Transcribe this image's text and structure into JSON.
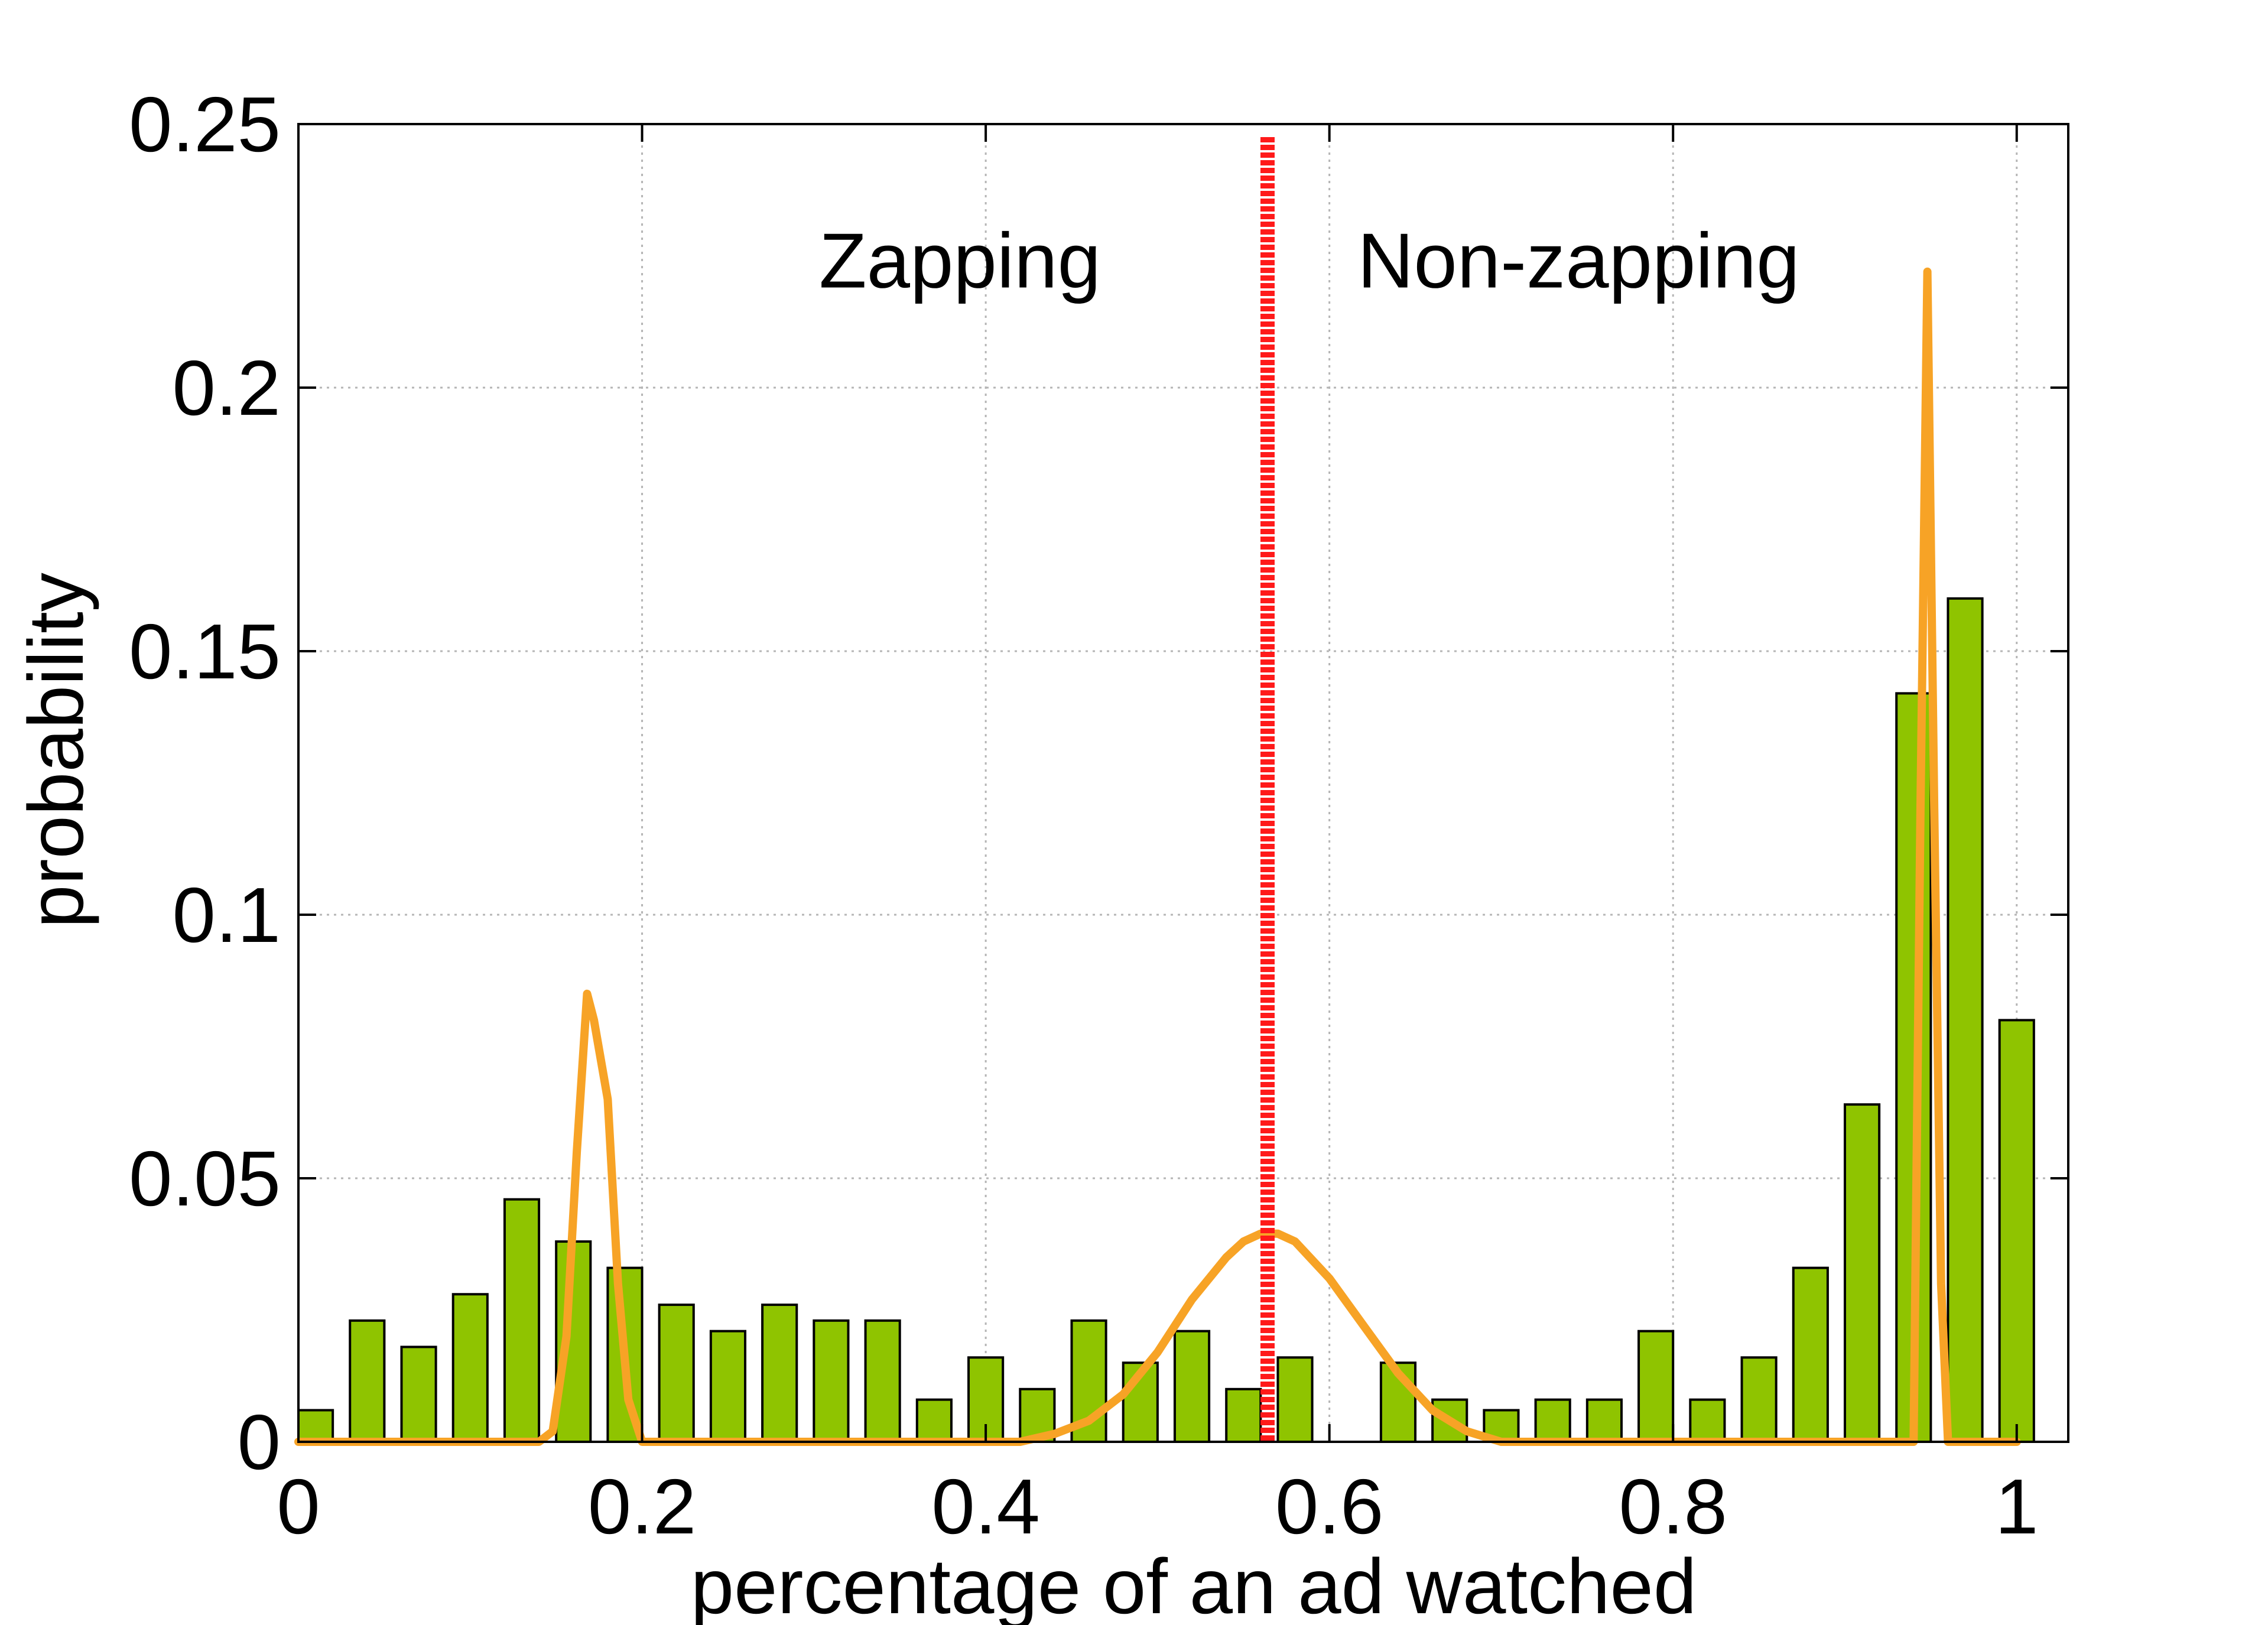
{
  "chart_data": {
    "type": "bar",
    "title": "",
    "xlabel": "percentage of an ad watched",
    "ylabel": "probability",
    "xlim": [
      0,
      1.03
    ],
    "ylim": [
      0,
      0.25
    ],
    "grid": true,
    "x_ticks": [
      {
        "value": 0,
        "label": "0"
      },
      {
        "value": 0.2,
        "label": "0.2"
      },
      {
        "value": 0.4,
        "label": "0.4"
      },
      {
        "value": 0.6,
        "label": "0.6"
      },
      {
        "value": 0.8,
        "label": "0.8"
      },
      {
        "value": 1,
        "label": "1"
      }
    ],
    "y_ticks": [
      {
        "value": 0,
        "label": "0"
      },
      {
        "value": 0.05,
        "label": "0.05"
      },
      {
        "value": 0.1,
        "label": "0.1"
      },
      {
        "value": 0.15,
        "label": "0.15"
      },
      {
        "value": 0.2,
        "label": "0.2"
      },
      {
        "value": 0.25,
        "label": "0.25"
      }
    ],
    "bar_color": "#8fc400",
    "bar_width": 0.02,
    "histogram": {
      "x": [
        0.01,
        0.04,
        0.07,
        0.1,
        0.13,
        0.16,
        0.19,
        0.22,
        0.25,
        0.28,
        0.31,
        0.34,
        0.37,
        0.4,
        0.43,
        0.46,
        0.49,
        0.52,
        0.55,
        0.58,
        0.61,
        0.64,
        0.67,
        0.7,
        0.73,
        0.76,
        0.79,
        0.82,
        0.85,
        0.88,
        0.91,
        0.94,
        0.97,
        1.0
      ],
      "values": [
        0.006,
        0.023,
        0.018,
        0.028,
        0.046,
        0.038,
        0.033,
        0.026,
        0.021,
        0.026,
        0.023,
        0.023,
        0.008,
        0.016,
        0.01,
        0.023,
        0.015,
        0.021,
        0.01,
        0.016,
        0,
        0.015,
        0.008,
        0.006,
        0.008,
        0.008,
        0.021,
        0.008,
        0.016,
        0.033,
        0.064,
        0.142,
        0.16,
        0.08
      ]
    },
    "fit_curve": {
      "color": "#f7a326",
      "x": [
        0,
        0.14,
        0.148,
        0.156,
        0.162,
        0.168,
        0.172,
        0.18,
        0.186,
        0.192,
        0.2,
        0.42,
        0.44,
        0.46,
        0.48,
        0.5,
        0.52,
        0.54,
        0.55,
        0.56,
        0.57,
        0.58,
        0.6,
        0.62,
        0.64,
        0.66,
        0.68,
        0.7,
        0.94,
        0.944,
        0.948,
        0.952,
        0.956,
        0.96,
        1.0
      ],
      "y": [
        0,
        0,
        0.002,
        0.02,
        0.055,
        0.085,
        0.08,
        0.065,
        0.03,
        0.008,
        0,
        0,
        0.0015,
        0.004,
        0.009,
        0.017,
        0.027,
        0.035,
        0.038,
        0.0395,
        0.0395,
        0.038,
        0.031,
        0.022,
        0.013,
        0.006,
        0.002,
        0,
        0,
        0.12,
        0.222,
        0.12,
        0.03,
        0,
        0
      ]
    },
    "threshold": {
      "x": 0.564,
      "color": "#ff1a1a"
    },
    "annotations": [
      {
        "text": "Zapping",
        "x": 0.385,
        "y": 0.219
      },
      {
        "text": "Non-zapping",
        "x": 0.745,
        "y": 0.219
      }
    ]
  }
}
